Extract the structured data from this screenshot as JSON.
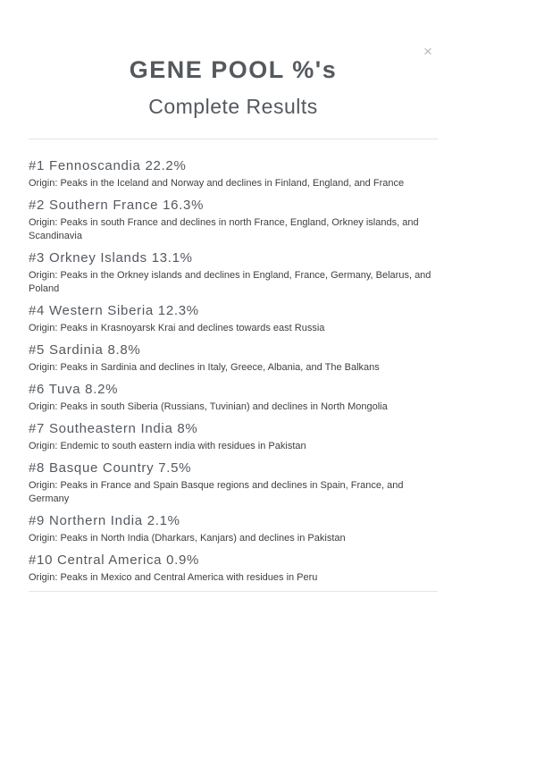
{
  "modal": {
    "title": "GENE POOL %'s",
    "subtitle": "Complete Results",
    "close_icon": "×"
  },
  "colors": {
    "heading_text": "#54595f",
    "body_text": "#3f3f3f",
    "divider": "#e5e5e5",
    "close_icon": "#b8b8b8",
    "background": "#ffffff"
  },
  "results": [
    {
      "rank": "#1",
      "name": "Fennoscandia",
      "percent": "22.2%",
      "origin": "Origin: Peaks in the Iceland and Norway and declines in Finland, England, and France"
    },
    {
      "rank": "#2",
      "name": "Southern France",
      "percent": "16.3%",
      "origin": "Origin: Peaks in south France and declines in north France, England, Orkney islands, and Scandinavia"
    },
    {
      "rank": "#3",
      "name": "Orkney Islands",
      "percent": "13.1%",
      "origin": "Origin: Peaks in the Orkney islands and declines in England, France, Germany, Belarus, and Poland"
    },
    {
      "rank": "#4",
      "name": "Western Siberia",
      "percent": "12.3%",
      "origin": "Origin: Peaks in Krasnoyarsk Krai and declines towards east Russia"
    },
    {
      "rank": "#5",
      "name": "Sardinia",
      "percent": "8.8%",
      "origin": "Origin: Peaks in Sardinia and declines in Italy, Greece, Albania, and The Balkans"
    },
    {
      "rank": "#6",
      "name": "Tuva",
      "percent": "8.2%",
      "origin": "Origin: Peaks in south Siberia (Russians, Tuvinian) and declines in North Mongolia"
    },
    {
      "rank": "#7",
      "name": "Southeastern India",
      "percent": "8%",
      "origin": "Origin: Endemic to south eastern india with residues in Pakistan"
    },
    {
      "rank": "#8",
      "name": "Basque Country",
      "percent": "7.5%",
      "origin": "Origin: Peaks in France and Spain Basque regions and declines in Spain, France, and Germany"
    },
    {
      "rank": "#9",
      "name": "Northern India",
      "percent": "2.1%",
      "origin": "Origin: Peaks in North India (Dharkars, Kanjars) and declines in Pakistan"
    },
    {
      "rank": "#10",
      "name": "Central America",
      "percent": "0.9%",
      "origin": "Origin: Peaks in Mexico and Central America with residues in Peru"
    }
  ]
}
